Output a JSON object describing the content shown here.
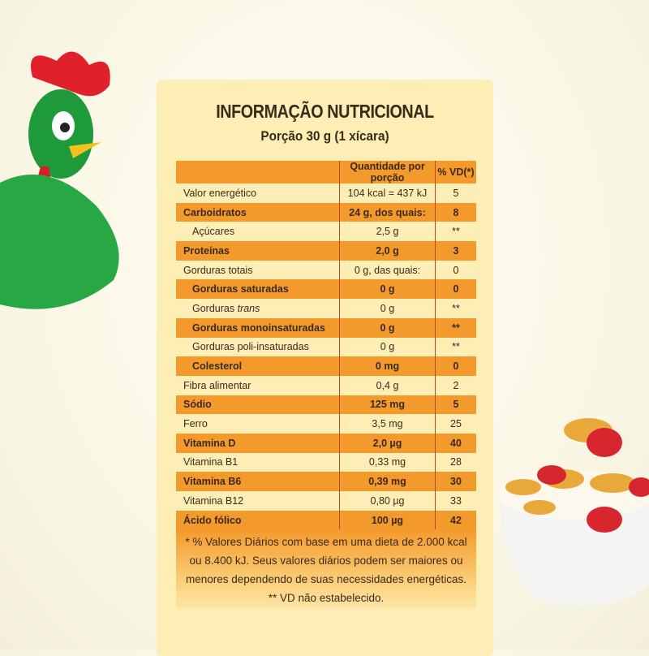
{
  "title": "INFORMAÇÃO NUTRICIONAL",
  "serving": "Porção 30 g (1 xícara)",
  "headers": {
    "amount": "Quantidade por porção",
    "vd": "% VD(*)"
  },
  "rows": [
    {
      "label": "Valor energético",
      "amount": "104 kcal = 437 kJ",
      "vd": "5"
    },
    {
      "label": "Carboidratos",
      "amount": "24 g, dos quais:",
      "vd": "8"
    },
    {
      "label": "Açúcares",
      "amount": "2,5 g",
      "vd": "**",
      "indent": true
    },
    {
      "label": "Proteínas",
      "amount": "2,0 g",
      "vd": "3"
    },
    {
      "label": "Gorduras totais",
      "amount": "0 g, das quais:",
      "vd": "0"
    },
    {
      "label": "Gorduras saturadas",
      "amount": "0 g",
      "vd": "0",
      "indent": true
    },
    {
      "label": "Gorduras trans",
      "amount": "0 g",
      "vd": "**",
      "indent": true
    },
    {
      "label": "Gorduras monoinsaturadas",
      "amount": "0 g",
      "vd": "**",
      "indent": true
    },
    {
      "label": "Gorduras poli-insaturadas",
      "amount": "0 g",
      "vd": "**",
      "indent": true
    },
    {
      "label": "Colesterol",
      "amount": "0 mg",
      "vd": "0",
      "indent": true
    },
    {
      "label": "Fibra alimentar",
      "amount": "0,4 g",
      "vd": "2"
    },
    {
      "label": "Sódio",
      "amount": "125 mg",
      "vd": "5"
    },
    {
      "label": "Ferro",
      "amount": "3,5 mg",
      "vd": "25"
    },
    {
      "label": "Vitamina D",
      "amount": "2,0 µg",
      "vd": "40"
    },
    {
      "label": "Vitamina B1",
      "amount": "0,33 mg",
      "vd": "28"
    },
    {
      "label": "Vitamina B6",
      "amount": "0,39 mg",
      "vd": "30"
    },
    {
      "label": "Vitamina B12",
      "amount": "0,80 µg",
      "vd": "33"
    },
    {
      "label": "Ácido fólico",
      "amount": "100 µg",
      "vd": "42"
    }
  ],
  "footnote": [
    "* % Valores Diários com base em uma dieta de 2.000 kcal",
    "ou 8.400 kJ. Seus valores diários podem ser maiores ou",
    "menores dependendo de suas necessidades energéticas.",
    "** VD não estabelecido."
  ],
  "colors": {
    "card": "#fdeeb5",
    "stripe": "#f49a2c",
    "divider": "#b94a1c"
  },
  "decorations": {
    "left": "rooster-mascot",
    "right": "cereal-bowl"
  }
}
